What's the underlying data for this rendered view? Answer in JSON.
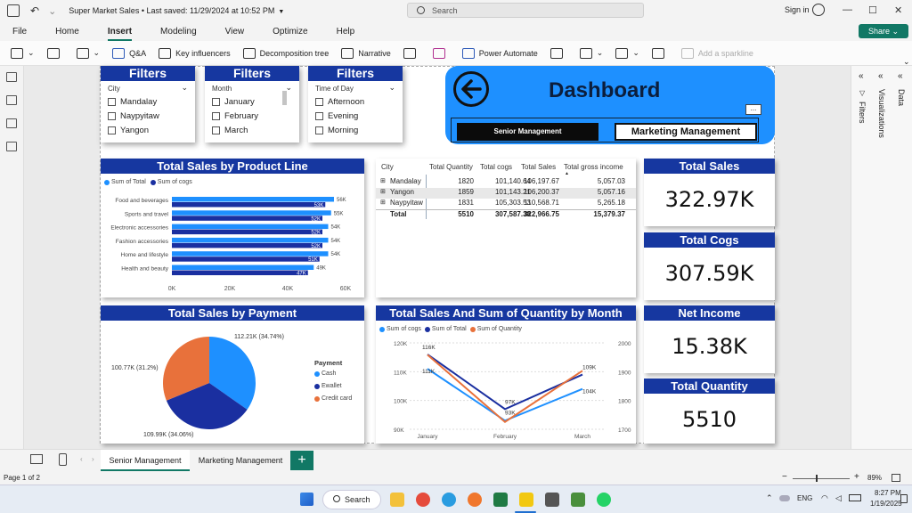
{
  "app": {
    "title": "Super Market Sales",
    "saved": "Last saved: 11/29/2024 at 10:52 PM",
    "search_placeholder": "Search",
    "signin": "Sign in",
    "share": "Share"
  },
  "menu": [
    "File",
    "Home",
    "Insert",
    "Modeling",
    "View",
    "Optimize",
    "Help"
  ],
  "active_menu": "Insert",
  "ribbon": {
    "qa": "Q&A",
    "key_influencers": "Key influencers",
    "decomposition_tree": "Decomposition tree",
    "narrative": "Narrative",
    "power_automate": "Power Automate",
    "sparkline": "Add a sparkline"
  },
  "filters": [
    {
      "title": "Filters",
      "label": "City",
      "items": [
        "Mandalay",
        "Naypyitaw",
        "Yangon"
      ]
    },
    {
      "title": "Filters",
      "label": "Month",
      "items": [
        "January",
        "February",
        "March"
      ]
    },
    {
      "title": "Filters",
      "label": "Time of Day",
      "items": [
        "Afternoon",
        "Evening",
        "Morning"
      ]
    }
  ],
  "dashboard": {
    "title": "Dashboard",
    "btn_senior": "Senior Management",
    "btn_marketing": "Marketing Management",
    "more": "..."
  },
  "product_line": {
    "title": "Total Sales by Product Line",
    "legend": [
      "Sum of Total",
      "Sum of cogs"
    ]
  },
  "table": {
    "headers": [
      "City",
      "Total Quantity",
      "Total cogs",
      "Total Sales",
      "Total gross income"
    ],
    "rows": [
      [
        "Mandalay",
        "1820",
        "101,140.64",
        "106,197.67",
        "5,057.03"
      ],
      [
        "Yangon",
        "1859",
        "101,143.21",
        "106,200.37",
        "5,057.16"
      ],
      [
        "Naypyitaw",
        "1831",
        "105,303.53",
        "110,568.71",
        "5,265.18"
      ]
    ],
    "total": [
      "Total",
      "5510",
      "307,587.38",
      "322,966.75",
      "15,379.37"
    ]
  },
  "kpis": [
    {
      "title": "Total Sales",
      "value": "322.97K"
    },
    {
      "title": "Total Cogs",
      "value": "307.59K"
    },
    {
      "title": "Net Income",
      "value": "15.38K"
    },
    {
      "title": "Total Quantity",
      "value": "5510"
    }
  ],
  "payment": {
    "title": "Total Sales by Payment",
    "legend_title": "Payment"
  },
  "month": {
    "title": "Total Sales And Sum of Quantity by Month",
    "legend": [
      "Sum of cogs",
      "Sum of Total",
      "Sum of Quantity"
    ]
  },
  "chart_data": [
    {
      "type": "bar",
      "title": "Total Sales by Product Line",
      "categories": [
        "Food and beverages",
        "Sports and travel",
        "Electronic accessories",
        "Fashion accessories",
        "Home and lifestyle",
        "Health and beauty"
      ],
      "series": [
        {
          "name": "Sum of Total",
          "values": [
            56,
            55,
            54,
            54,
            54,
            49
          ],
          "labels": [
            "56K",
            "55K",
            "54K",
            "54K",
            "54K",
            "49K"
          ],
          "color": "#1e90ff"
        },
        {
          "name": "Sum of cogs",
          "values": [
            53,
            52,
            52,
            52,
            51,
            47
          ],
          "labels": [
            "53K",
            "52K",
            "52K",
            "52K",
            "51K",
            "47K"
          ],
          "color": "#1a2fa0"
        }
      ],
      "xticks": [
        "0K",
        "20K",
        "40K",
        "60K"
      ],
      "xlim": [
        0,
        60
      ]
    },
    {
      "type": "pie",
      "title": "Total Sales by Payment",
      "slices": [
        {
          "name": "Cash",
          "value": 112.21,
          "label": "112.21K (34.74%)",
          "color": "#1e90ff"
        },
        {
          "name": "Ewallet",
          "value": 109.99,
          "label": "109.99K (34.06%)",
          "color": "#1a2fa0"
        },
        {
          "name": "Credit card",
          "value": 100.77,
          "label": "100.77K (31.2%)",
          "color": "#e8713b"
        }
      ]
    },
    {
      "type": "line",
      "title": "Total Sales And Sum of Quantity by Month",
      "x": [
        "January",
        "February",
        "March"
      ],
      "series": [
        {
          "name": "Sum of cogs",
          "values": [
            111,
            93,
            104
          ],
          "labels": [
            "111K",
            "93K",
            "104K"
          ],
          "color": "#1e90ff",
          "axis": "left"
        },
        {
          "name": "Sum of Total",
          "values": [
            116,
            97,
            109
          ],
          "labels": [
            "116K",
            "97K",
            "109K"
          ],
          "color": "#1a2fa0",
          "axis": "left"
        },
        {
          "name": "Sum of Quantity",
          "values": [
            1965,
            1654,
            1891
          ],
          "color": "#e8713b",
          "axis": "right"
        }
      ],
      "yticks_left": [
        "120K",
        "110K",
        "100K",
        "90K"
      ],
      "ylim_left": [
        90,
        120
      ],
      "yticks_right": [
        "2000",
        "1900",
        "1800",
        "1700"
      ],
      "ylim_right": [
        1620,
        2020
      ]
    }
  ],
  "pages": [
    "Senior Management",
    "Marketing Management"
  ],
  "status": {
    "page": "Page 1 of 2",
    "zoom": "89%"
  },
  "panes": {
    "filters": "Filters",
    "visualizations": "Visualizations",
    "data": "Data"
  },
  "taskbar": {
    "search": "Search",
    "lang": "ENG",
    "time": "8:27 PM",
    "date": "1/19/2025"
  },
  "colors": {
    "header_blue": "#1637a0",
    "accent_blue": "#1e90ff",
    "dark_blue": "#1a2fa0",
    "orange": "#e8713b",
    "teal": "#117865"
  }
}
